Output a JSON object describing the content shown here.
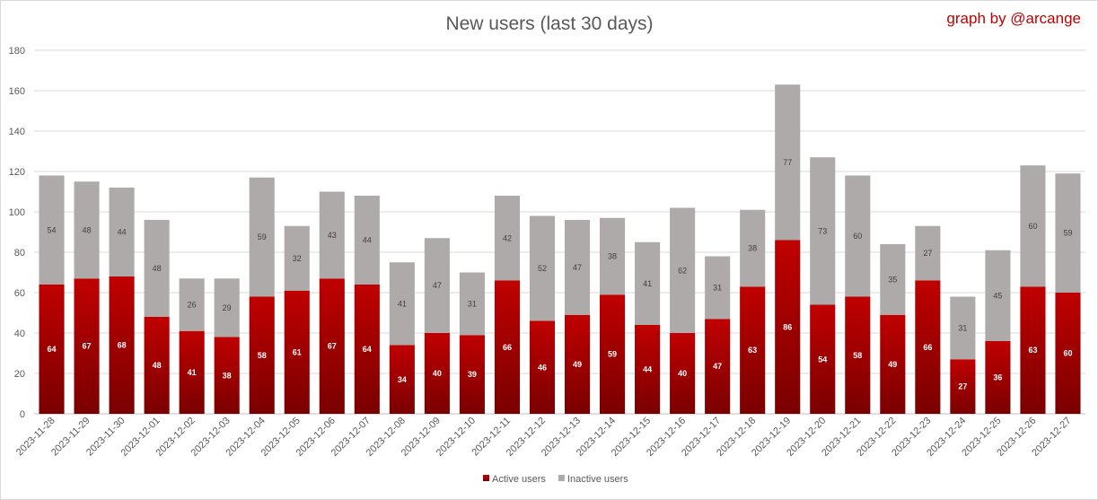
{
  "chart_data": {
    "type": "bar",
    "stacked": true,
    "title": "New users (last 30 days)",
    "credit": "graph by @arcange",
    "xlabel": "",
    "ylabel": "",
    "ylim": [
      0,
      180
    ],
    "yticks": [
      0,
      20,
      40,
      60,
      80,
      100,
      120,
      140,
      160,
      180
    ],
    "grid": true,
    "legend_position": "bottom",
    "categories": [
      "2023-11-28",
      "2023-11-29",
      "2023-11-30",
      "2023-12-01",
      "2023-12-02",
      "2023-12-03",
      "2023-12-04",
      "2023-12-05",
      "2023-12-06",
      "2023-12-07",
      "2023-12-08",
      "2023-12-09",
      "2023-12-10",
      "2023-12-11",
      "2023-12-12",
      "2023-12-13",
      "2023-12-14",
      "2023-12-15",
      "2023-12-16",
      "2023-12-17",
      "2023-12-18",
      "2023-12-19",
      "2023-12-20",
      "2023-12-21",
      "2023-12-22",
      "2023-12-23",
      "2023-12-24",
      "2023-12-25",
      "2023-12-26",
      "2023-12-27"
    ],
    "series": [
      {
        "name": "Active users",
        "color": "#c00000",
        "color_dark": "#7a0000",
        "values": [
          64,
          67,
          68,
          48,
          41,
          38,
          58,
          61,
          67,
          64,
          34,
          40,
          39,
          66,
          46,
          49,
          59,
          44,
          40,
          47,
          63,
          86,
          54,
          58,
          49,
          66,
          27,
          36,
          63,
          60
        ]
      },
      {
        "name": "Inactive users",
        "color": "#aeaaaa",
        "values": [
          54,
          48,
          44,
          48,
          26,
          29,
          59,
          32,
          43,
          44,
          41,
          47,
          31,
          42,
          52,
          47,
          38,
          41,
          62,
          31,
          38,
          77,
          73,
          60,
          35,
          27,
          31,
          45,
          60,
          59
        ]
      }
    ]
  }
}
